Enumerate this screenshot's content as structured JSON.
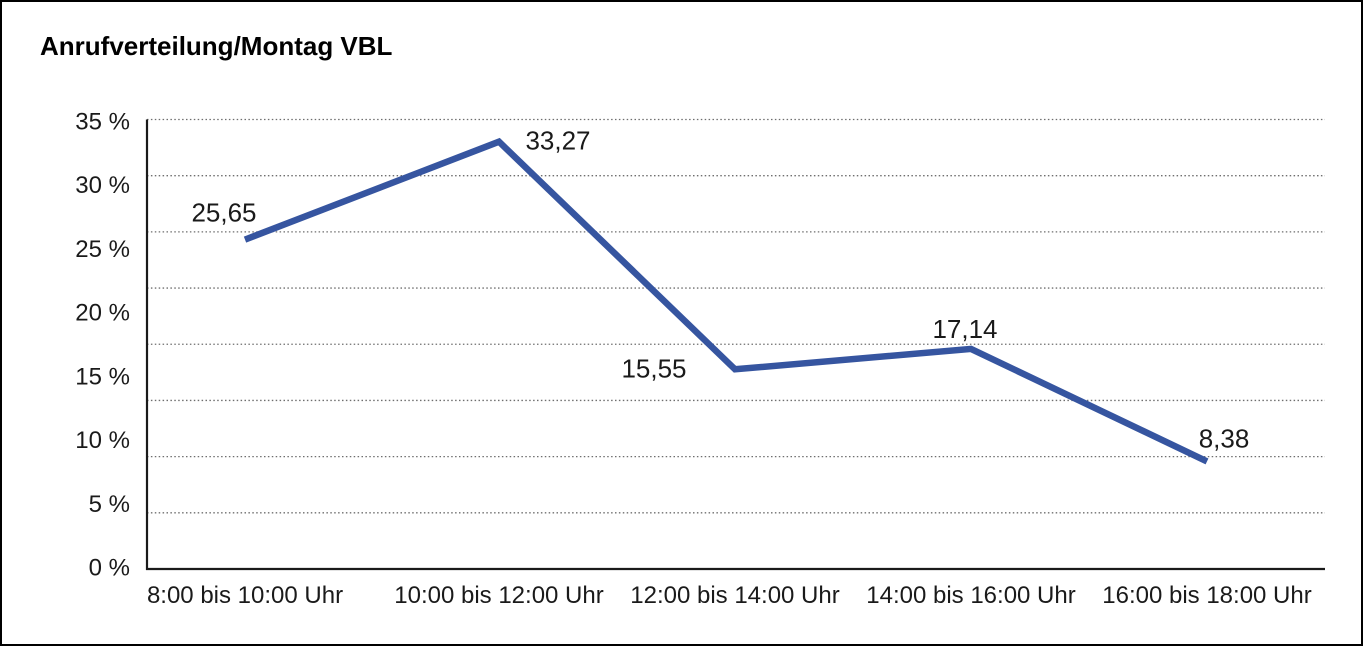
{
  "chart_data": {
    "type": "line",
    "title": "Anrufverteilung/Montag VBL",
    "categories": [
      "8:00 bis 10:00 Uhr",
      "10:00 bis 12:00 Uhr",
      "12:00 bis 14:00 Uhr",
      "14:00 bis 16:00 Uhr",
      "16:00 bis 18:00 Uhr"
    ],
    "values": [
      25.65,
      33.27,
      15.55,
      17.14,
      8.38
    ],
    "value_labels": [
      "25,65",
      "33,27",
      "15,55",
      "17,14",
      "8,38"
    ],
    "y_tick_labels": [
      "35 %",
      "30 %",
      "25 %",
      "20 %",
      "15 %",
      "10 %",
      "5 %",
      "0 %"
    ],
    "ylim": [
      0,
      35
    ],
    "unit": "%",
    "xlabel": "",
    "ylabel": "",
    "legend": "none",
    "grid": "horizontal-dotted",
    "line_color": "#3655A0",
    "axis_color": "#1a1a1a",
    "grid_color": "#6e6e6e",
    "text_color": "#1a1a1a"
  }
}
